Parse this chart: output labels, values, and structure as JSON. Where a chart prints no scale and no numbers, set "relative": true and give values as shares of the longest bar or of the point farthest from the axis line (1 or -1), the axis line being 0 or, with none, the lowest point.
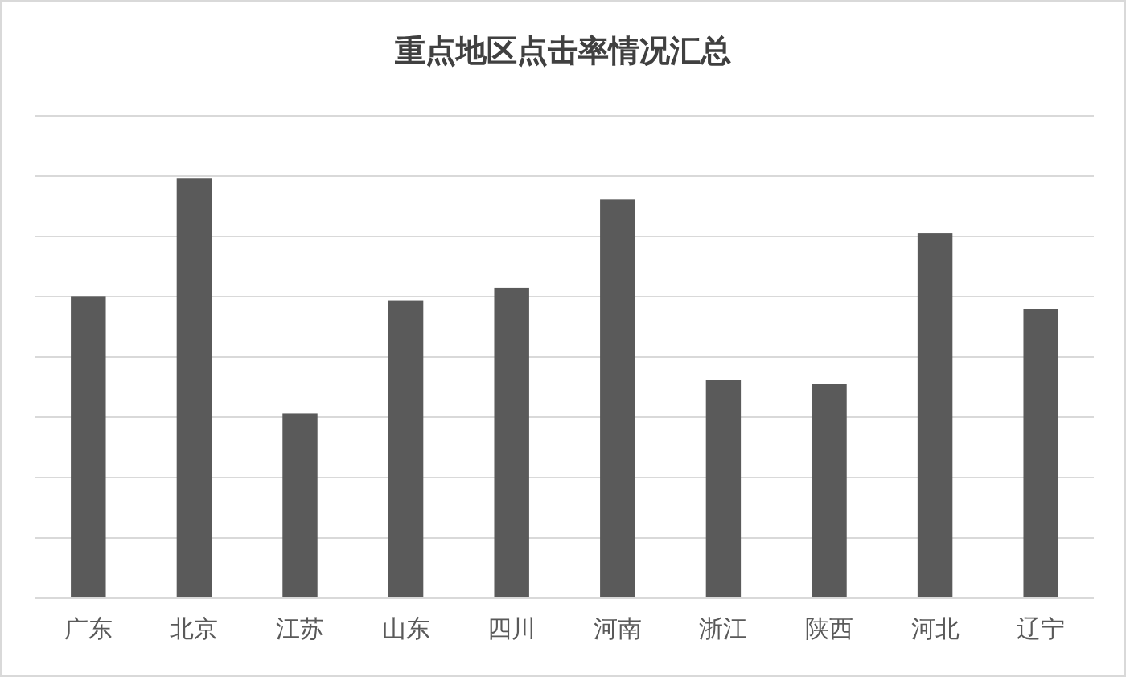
{
  "chart_data": {
    "type": "bar",
    "title": "重点地区点击率情况汇总",
    "relative": true,
    "grid": "y",
    "categories": [
      "广东",
      "北京",
      "江苏",
      "山东",
      "四川",
      "河南",
      "浙江",
      "陕西",
      "河北",
      "辽宁"
    ],
    "values": [
      0.72,
      1,
      0.44,
      0.71,
      0.74,
      0.95,
      0.52,
      0.51,
      0.87,
      0.69
    ],
    "color": "#5a5a5a"
  }
}
